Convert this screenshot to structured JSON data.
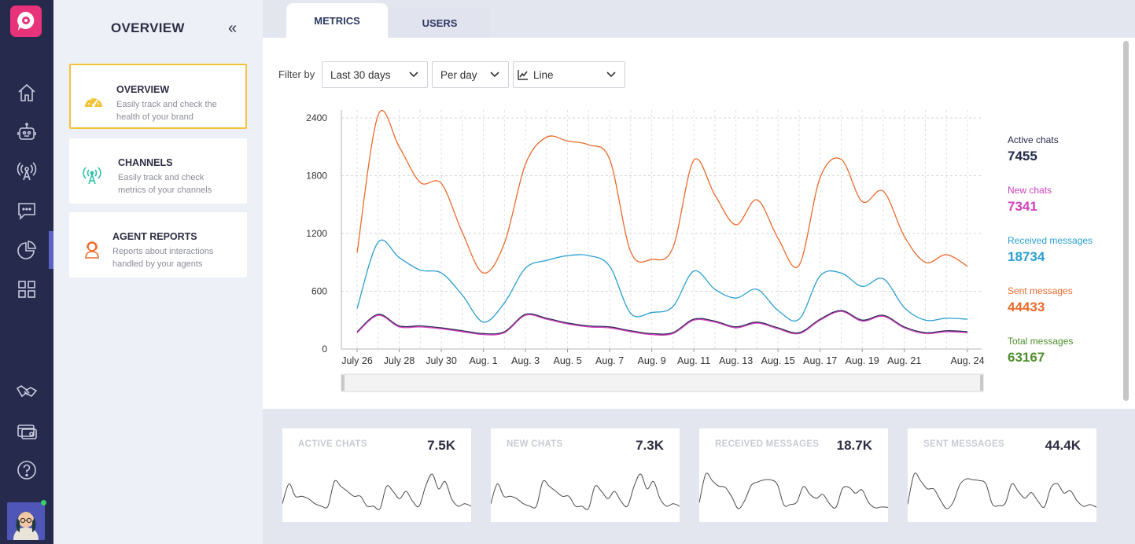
{
  "rail": {
    "items": [
      "home-icon",
      "bot-icon",
      "broadcast-icon",
      "chat-icon",
      "reports-icon",
      "apps-icon",
      "handshake-icon",
      "billing-icon",
      "help-icon"
    ],
    "active": "reports-icon"
  },
  "panel": {
    "title": "OVERVIEW",
    "collapse_glyph": "«",
    "cards": [
      {
        "title": "OVERVIEW",
        "desc1": "Easily track and check the",
        "desc2": "health of your brand",
        "icon": "gauge-icon",
        "selected": true
      },
      {
        "title": "CHANNELS",
        "desc1": "Easily track and check",
        "desc2": "metrics of your channels",
        "icon": "antenna-icon",
        "selected": false
      },
      {
        "title": "AGENT REPORTS",
        "desc1": "Reports about interactions",
        "desc2": "handled by your agents",
        "icon": "agent-icon",
        "selected": false
      }
    ]
  },
  "tabs": {
    "metrics": "METRICS",
    "users": "USERS"
  },
  "filters": {
    "label": "Filter by",
    "range": "Last 30 days",
    "granularity": "Per day",
    "chart_type": "Line"
  },
  "legend": [
    {
      "name": "Active chats",
      "value": "7455",
      "color": "#262a4c"
    },
    {
      "name": "New chats",
      "value": "7341",
      "color": "#d13fbf"
    },
    {
      "name": "Received messages",
      "value": "18734",
      "color": "#2a9fd1"
    },
    {
      "name": "Sent messages",
      "value": "44433",
      "color": "#ec6a2c"
    },
    {
      "name": "Total messages",
      "value": "63167",
      "color": "#4e8f2e"
    }
  ],
  "mini_cards": [
    {
      "label": "ACTIVE CHATS",
      "value": "7.5K"
    },
    {
      "label": "NEW CHATS",
      "value": "7.3K"
    },
    {
      "label": "RECEIVED MESSAGES",
      "value": "18.7K"
    },
    {
      "label": "SENT MESSAGES",
      "value": "44.4K"
    }
  ],
  "chart_data": {
    "type": "line",
    "x": [
      "July 26",
      "July 27",
      "July 28",
      "July 29",
      "July 30",
      "July 31",
      "Aug. 1",
      "Aug. 2",
      "Aug. 3",
      "Aug. 4",
      "Aug. 5",
      "Aug. 6",
      "Aug. 7",
      "Aug. 8",
      "Aug. 9",
      "Aug. 10",
      "Aug. 11",
      "Aug. 12",
      "Aug. 13",
      "Aug. 14",
      "Aug. 15",
      "Aug. 16",
      "Aug. 17",
      "Aug. 18",
      "Aug. 19",
      "Aug. 20",
      "Aug. 21",
      "Aug. 22",
      "Aug. 23",
      "Aug. 24"
    ],
    "x_tick_labels": [
      "July 26",
      "July 28",
      "July 30",
      "Aug. 1",
      "Aug. 3",
      "Aug. 5",
      "Aug. 7",
      "Aug. 9",
      "Aug. 11",
      "Aug. 13",
      "Aug. 15",
      "Aug. 17",
      "Aug. 19",
      "Aug. 21",
      "Aug. 24"
    ],
    "y_ticks": [
      0,
      600,
      1200,
      1800,
      2400
    ],
    "ylim": [
      0,
      2400
    ],
    "grid": true,
    "series": [
      {
        "name": "Sent messages",
        "color": "#ec6a2c",
        "values": [
          1000,
          2430,
          2100,
          1730,
          1720,
          1210,
          790,
          1100,
          1920,
          2200,
          2160,
          2120,
          1970,
          1010,
          930,
          1050,
          1960,
          1600,
          1290,
          1550,
          1150,
          870,
          1780,
          1970,
          1530,
          1640,
          1170,
          900,
          980,
          860
        ]
      },
      {
        "name": "Received messages",
        "color": "#2a9fd1",
        "values": [
          420,
          1110,
          950,
          820,
          790,
          560,
          280,
          480,
          840,
          920,
          970,
          970,
          860,
          370,
          380,
          440,
          810,
          620,
          530,
          620,
          400,
          310,
          760,
          790,
          650,
          730,
          430,
          300,
          320,
          310
        ]
      },
      {
        "name": "Active chats",
        "color": "#262a4c",
        "values": [
          180,
          360,
          240,
          240,
          220,
          190,
          160,
          180,
          360,
          320,
          270,
          240,
          230,
          190,
          160,
          170,
          310,
          290,
          230,
          280,
          220,
          170,
          310,
          400,
          300,
          350,
          230,
          170,
          190,
          180
        ]
      },
      {
        "name": "New chats",
        "color": "#d13fbf",
        "values": [
          170,
          350,
          230,
          230,
          210,
          180,
          150,
          170,
          350,
          310,
          260,
          230,
          220,
          180,
          150,
          160,
          300,
          280,
          220,
          270,
          210,
          160,
          300,
          390,
          290,
          340,
          220,
          160,
          180,
          170
        ]
      }
    ]
  },
  "mini_chart_data": [
    [
      120,
      200,
      150,
      150,
      140,
      120,
      110,
      110,
      210,
      190,
      170,
      150,
      150,
      110,
      110,
      100,
      190,
      170,
      140,
      170,
      130,
      110,
      190,
      240,
      180,
      210,
      140,
      110,
      120,
      110
    ],
    [
      115,
      195,
      145,
      145,
      135,
      115,
      105,
      105,
      205,
      185,
      165,
      145,
      145,
      105,
      105,
      95,
      185,
      165,
      135,
      165,
      125,
      105,
      185,
      235,
      175,
      205,
      135,
      105,
      115,
      105
    ],
    [
      420,
      1110,
      950,
      820,
      790,
      560,
      280,
      480,
      840,
      920,
      970,
      970,
      860,
      370,
      380,
      440,
      810,
      620,
      530,
      620,
      400,
      310,
      760,
      790,
      650,
      730,
      430,
      300,
      320,
      310
    ],
    [
      1000,
      2430,
      2100,
      1730,
      1720,
      1210,
      790,
      1100,
      1920,
      2200,
      2160,
      2120,
      1970,
      1010,
      930,
      1050,
      1960,
      1600,
      1290,
      1550,
      1150,
      870,
      1780,
      1970,
      1530,
      1640,
      1170,
      900,
      980,
      860
    ]
  ]
}
